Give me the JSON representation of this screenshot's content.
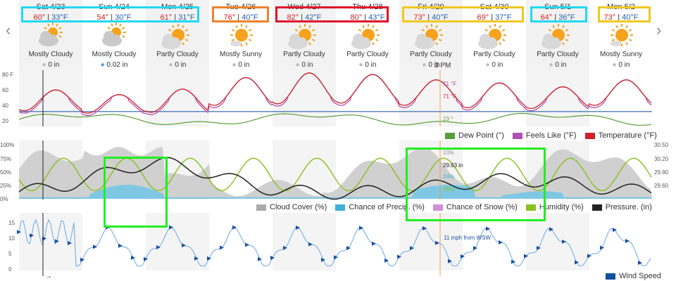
{
  "nav": {
    "prev_icon": "‹",
    "next_icon": "›"
  },
  "days": [
    {
      "name": "Sat 4/23",
      "hi": "60°",
      "lo": "33°F",
      "cond": "Mostly Cloudy",
      "precip": "0 in",
      "icon": "partly-cloudy-icon",
      "drop": "gray"
    },
    {
      "name": "Sun 4/24",
      "hi": "54°",
      "lo": "30°F",
      "cond": "Mostly Cloudy",
      "precip": "0.02 in",
      "icon": "partly-cloudy-icon",
      "drop": "blue"
    },
    {
      "name": "Mon 4/25",
      "hi": "61°",
      "lo": "31°F",
      "cond": "Partly Cloudy",
      "precip": "0 in",
      "icon": "sun-cloud-icon",
      "drop": "gray"
    },
    {
      "name": "Tue 4/26",
      "hi": "76°",
      "lo": "40°F",
      "cond": "Mostly Sunny",
      "precip": "0 in",
      "icon": "sun-icon",
      "drop": "gray"
    },
    {
      "name": "Wed 4/27",
      "hi": "82°",
      "lo": "42°F",
      "cond": "Partly Cloudy",
      "precip": "0 in",
      "icon": "sun-cloud-icon",
      "drop": "gray"
    },
    {
      "name": "Thu 4/28",
      "hi": "80°",
      "lo": "43°F",
      "cond": "Partly Cloudy",
      "precip": "0 in",
      "icon": "sun-cloud-icon",
      "drop": "gray"
    },
    {
      "name": "Fri 4/29",
      "hi": "73°",
      "lo": "40°F",
      "cond": "Partly Cloudy",
      "precip": "0 in",
      "icon": "sun-cloud-icon",
      "drop": "gray"
    },
    {
      "name": "Sat 4/30",
      "hi": "69°",
      "lo": "37°F",
      "cond": "Partly Cloudy",
      "precip": "0 in",
      "icon": "sun-cloud-icon",
      "drop": "gray"
    },
    {
      "name": "Sun 5/1",
      "hi": "64°",
      "lo": "36°F",
      "cond": "Partly Cloudy",
      "precip": "0 in",
      "icon": "sun-cloud-icon",
      "drop": "gray"
    },
    {
      "name": "Mon 5/2",
      "hi": "73°",
      "lo": "40°F",
      "cond": "Mostly Sunny",
      "precip": "0 in",
      "icon": "sun-icon",
      "drop": "gray"
    }
  ],
  "highlight_colors": {
    "cyan": "#20d8f0",
    "orange": "#f0802a",
    "red": "#e0102a",
    "yellow": "#f0c820",
    "green": "#22ee22"
  },
  "hour_label": "3 PM",
  "temp_chart": {
    "yticks": [
      "80 F",
      "60",
      "40",
      "20"
    ],
    "readouts": {
      "feels_like": "71 °F",
      "temperature": "71 °F",
      "dew_point": "23 °"
    },
    "legend": [
      {
        "label": "Dew Point (°)",
        "color": "#5a9e3a"
      },
      {
        "label": "Feels Like (°F)",
        "color": "#b050b0"
      },
      {
        "label": "Temperature (°F)",
        "color": "#d0202a"
      }
    ]
  },
  "percent_chart": {
    "yticks_left": [
      "100%",
      "75%",
      "50%",
      "25%",
      "0%"
    ],
    "yticks_right": [
      "30.50",
      "30.20",
      "29.90",
      "29.60"
    ],
    "readouts": {
      "cloud": "33%",
      "pressure": "29.63 in",
      "precip": "24%",
      "humidity": "16%"
    },
    "legend": [
      {
        "label": "Cloud Cover (%)",
        "color": "#aaaaaa"
      },
      {
        "label": "Chance of Precip. (%)",
        "color": "#40b0d8"
      },
      {
        "label": "Chance of Snow (%)",
        "color": "#d090d8"
      },
      {
        "label": "Humidity (%)",
        "color": "#88c020"
      },
      {
        "label": "Pressure. (in)",
        "color": "#222222"
      }
    ]
  },
  "wind_chart": {
    "yticks": [
      "15",
      "10",
      "5",
      "0"
    ],
    "readout": "11 mph from WSW",
    "legend": [
      {
        "label": "Wind Speed",
        "color": "#1050a0"
      }
    ]
  }
}
